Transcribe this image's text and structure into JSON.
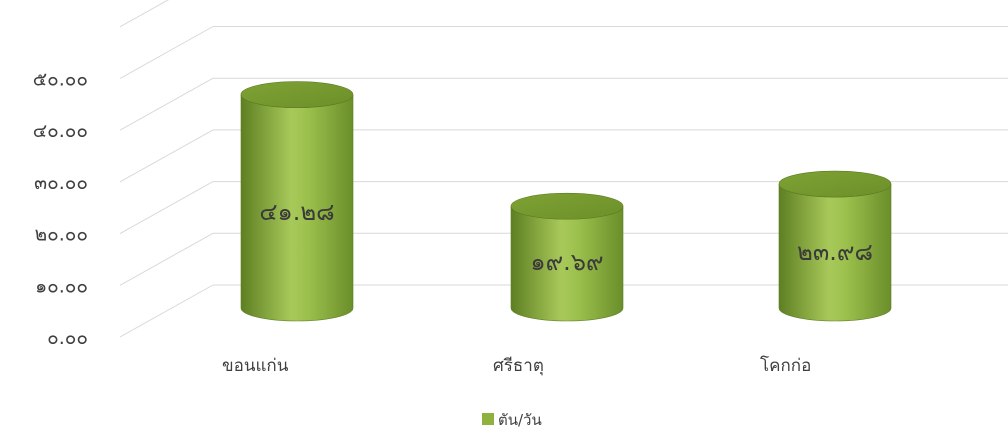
{
  "chart_data": {
    "type": "bar",
    "categories": [
      "ขอนแก่น",
      "ศรีธาตุ",
      "โคกก่อ"
    ],
    "series": [
      {
        "name": "ตัน/วัน",
        "values": [
          41.28,
          19.69,
          23.98
        ],
        "data_labels": [
          "๔๑.๒๘",
          "๑๙.๖๙",
          "๒๓.๙๘"
        ],
        "color": "#8FB23E"
      }
    ],
    "y_ticks": [
      "๐.๐๐",
      "๑๐.๐๐",
      "๒๐.๐๐",
      "๓๐.๐๐",
      "๔๐.๐๐",
      "๕๐.๐๐"
    ],
    "ylim": [
      0,
      60
    ],
    "grid": true,
    "legend": "bottom",
    "style": "3d-cylinder"
  }
}
